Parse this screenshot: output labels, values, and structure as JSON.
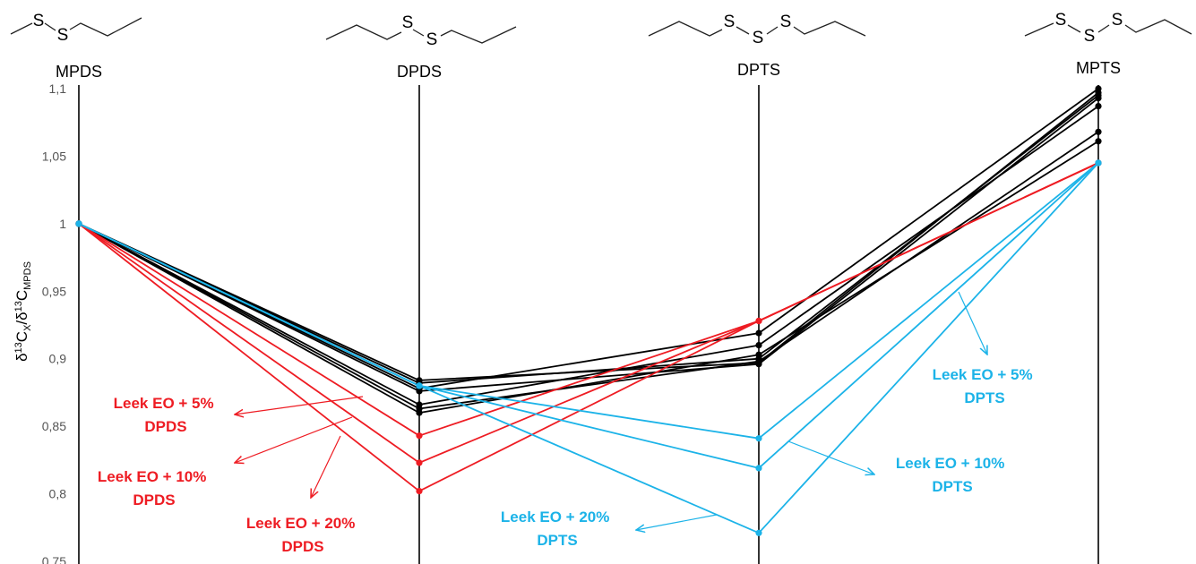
{
  "chart_data": {
    "type": "line",
    "categories": [
      "MPDS",
      "DPDS",
      "DPTS",
      "MPTS"
    ],
    "ylabel": {
      "main1": "δ",
      "sup1": "13",
      "main2": "C",
      "sub1": "X",
      "main3": "/δ",
      "sup2": "13",
      "main4": "C",
      "sub2": "MPDS"
    },
    "ylim": [
      0.75,
      1.1
    ],
    "yticks": [
      {
        "v": 0.75,
        "label": "0,75"
      },
      {
        "v": 0.8,
        "label": "0,8"
      },
      {
        "v": 0.85,
        "label": "0,85"
      },
      {
        "v": 0.9,
        "label": "0,9"
      },
      {
        "v": 0.95,
        "label": "0,95"
      },
      {
        "v": 1.0,
        "label": "1"
      },
      {
        "v": 1.05,
        "label": "1,05"
      },
      {
        "v": 1.1,
        "label": "1,1"
      }
    ],
    "colors": {
      "black": "#000000",
      "red": "#ee1c23",
      "blue": "#1cb3e8"
    },
    "series": [
      {
        "color": "black",
        "values": [
          1.0,
          0.884,
          0.897,
          1.097
        ]
      },
      {
        "color": "black",
        "values": [
          1.0,
          0.882,
          0.9,
          1.095
        ]
      },
      {
        "color": "black",
        "values": [
          1.0,
          0.878,
          0.919,
          1.1
        ]
      },
      {
        "color": "black",
        "values": [
          1.0,
          0.866,
          0.91,
          1.087
        ]
      },
      {
        "color": "black",
        "values": [
          1.0,
          0.863,
          0.898,
          1.068
        ]
      },
      {
        "color": "black",
        "values": [
          1.0,
          0.86,
          0.903,
          1.061
        ]
      },
      {
        "color": "black",
        "values": [
          1.0,
          0.876,
          0.896,
          1.093
        ]
      },
      {
        "color": "red",
        "values": [
          1.0,
          0.843,
          0.928,
          1.045
        ]
      },
      {
        "color": "red",
        "values": [
          1.0,
          0.823,
          0.928,
          1.045
        ]
      },
      {
        "color": "red",
        "values": [
          1.0,
          0.802,
          0.928,
          1.045
        ]
      },
      {
        "color": "blue",
        "values": [
          1.0,
          0.88,
          0.841,
          1.045
        ]
      },
      {
        "color": "blue",
        "values": [
          1.0,
          0.88,
          0.819,
          1.045
        ]
      },
      {
        "color": "blue",
        "values": [
          1.0,
          0.88,
          0.771,
          1.045
        ]
      }
    ],
    "annotations": [
      {
        "color": "red",
        "line1": "Leek EO + 5%",
        "line2": "DPDS"
      },
      {
        "color": "red",
        "line1": "Leek EO + 10%",
        "line2": "DPDS"
      },
      {
        "color": "red",
        "line1": "Leek EO + 20%",
        "line2": "DPDS"
      },
      {
        "color": "blue",
        "line1": "Leek EO + 5%",
        "line2": "DPTS"
      },
      {
        "color": "blue",
        "line1": "Leek EO + 10%",
        "line2": "DPTS"
      },
      {
        "color": "blue",
        "line1": "Leek EO + 20%",
        "line2": "DPTS"
      }
    ],
    "structures": [
      {
        "atoms": [
          "S",
          "S"
        ]
      },
      {
        "atoms": [
          "S",
          "S"
        ]
      },
      {
        "atoms": [
          "S",
          "S",
          "S"
        ]
      },
      {
        "atoms": [
          "S",
          "S",
          "S"
        ]
      }
    ],
    "grid": false,
    "legend": "none"
  }
}
